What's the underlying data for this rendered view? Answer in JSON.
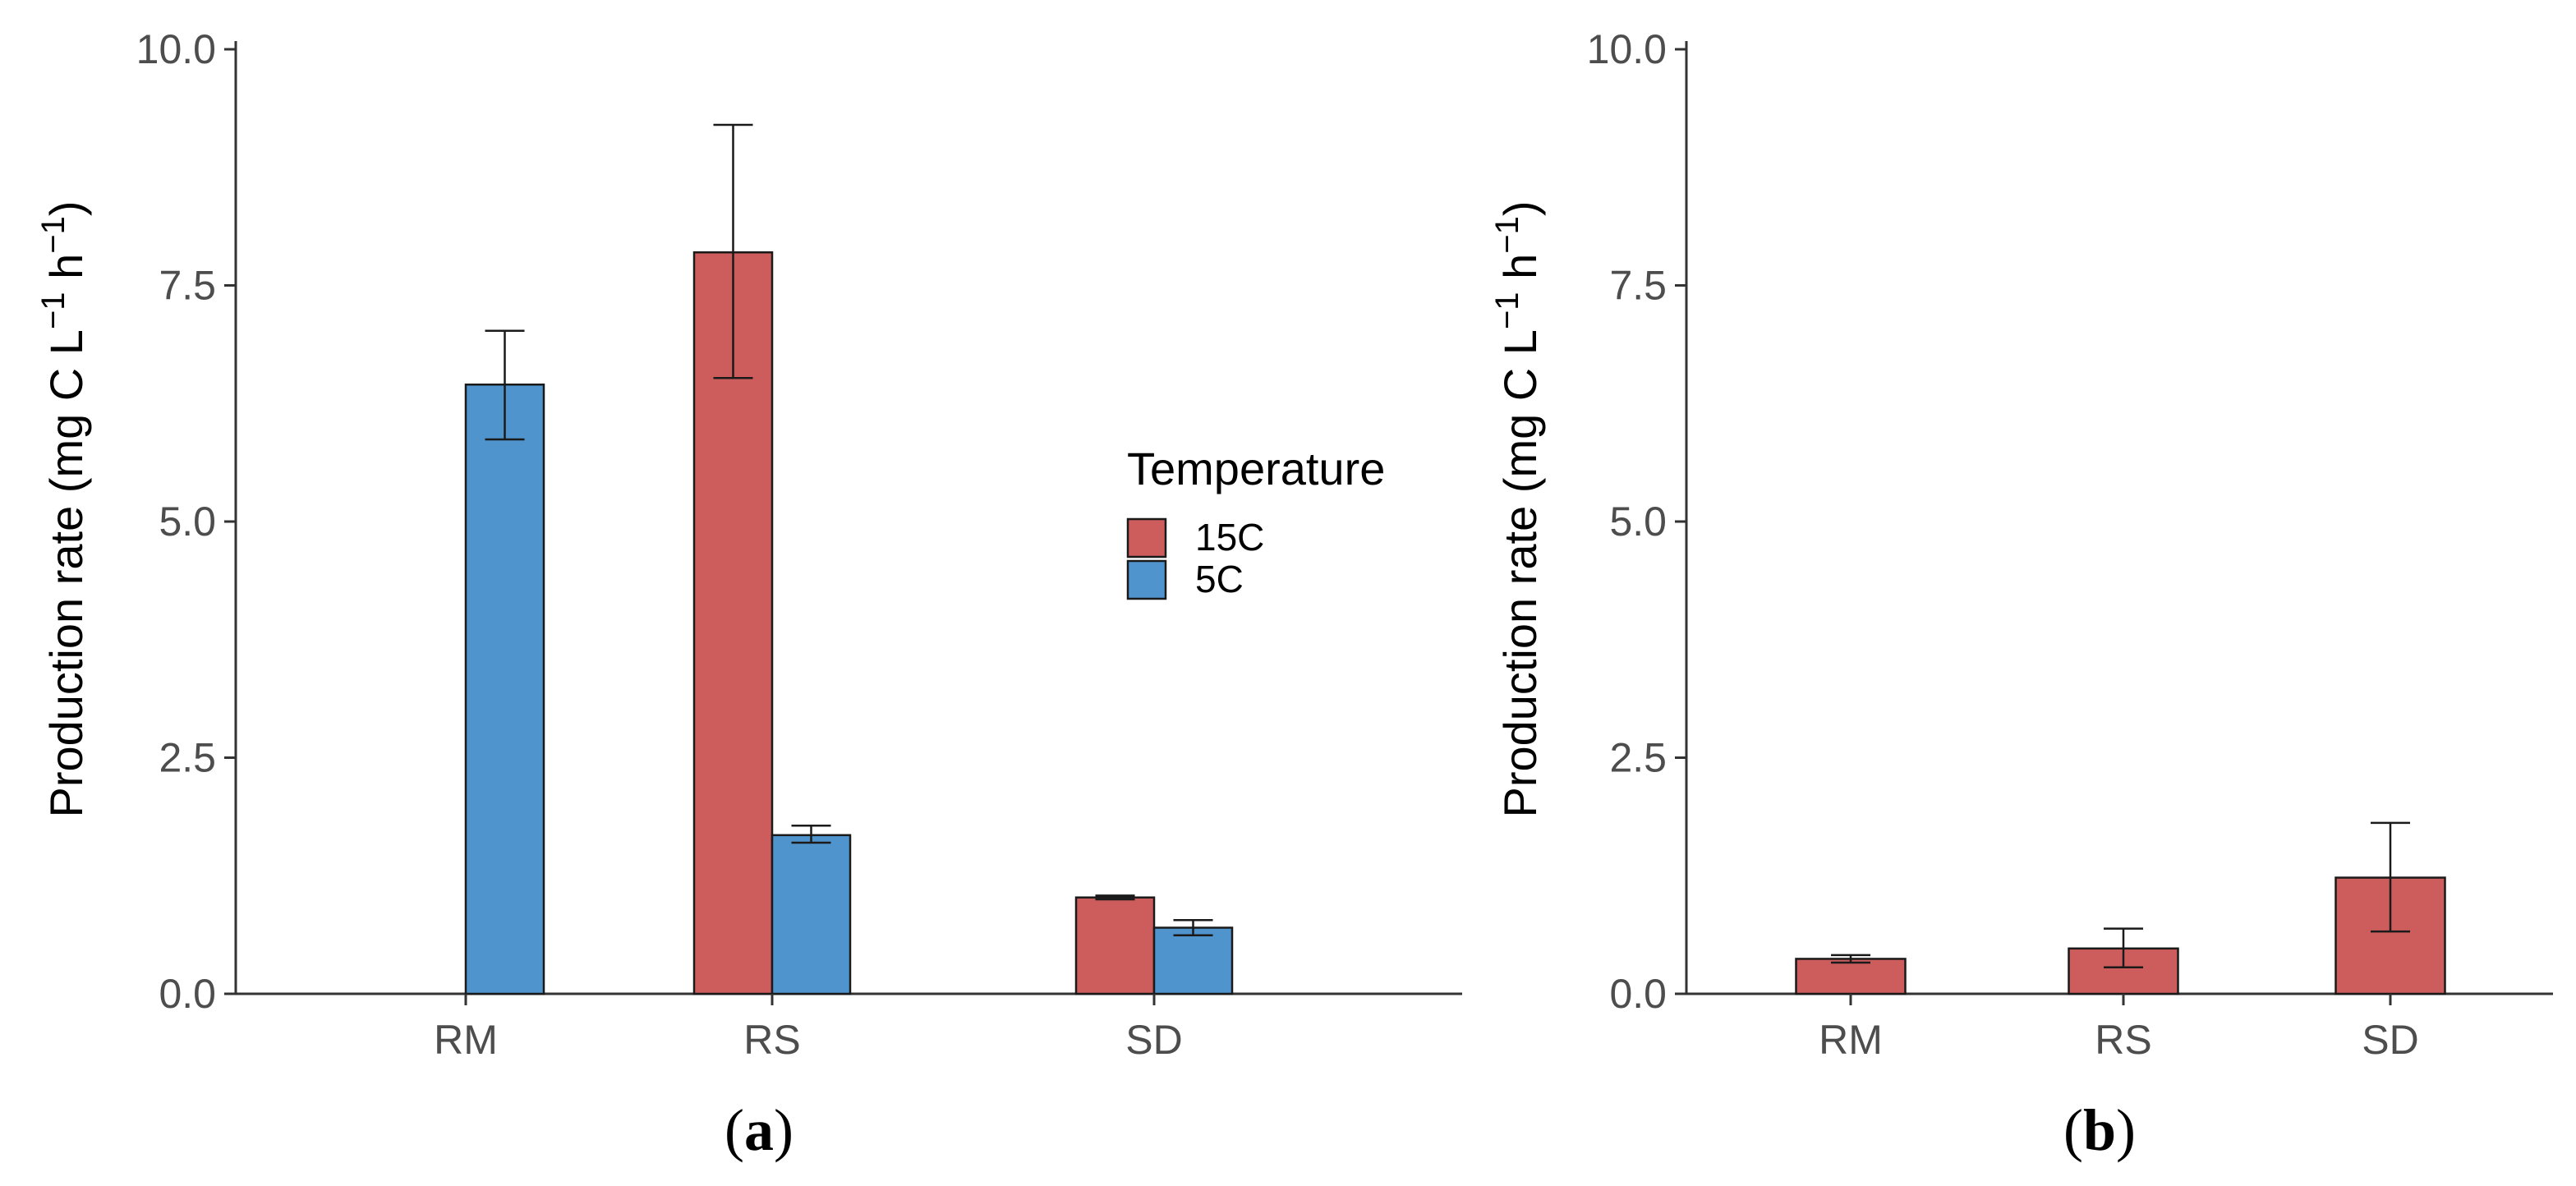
{
  "colors": {
    "15C": "#cd5c5c",
    "5C": "#4f94cd"
  },
  "chart_data": [
    {
      "type": "bar",
      "panel_label": "a",
      "categories": [
        "RM",
        "RS",
        "SD"
      ],
      "ylabel": "Production rate (mg C L⁻¹ h⁻¹)",
      "ylabel_parts": {
        "base": "Production rate (mg C L",
        "sup1": "−1",
        "mid": " h",
        "sup2": "−1",
        "close": ")"
      },
      "ylim": [
        0,
        10
      ],
      "yticks": [
        "0.0",
        "2.5",
        "5.0",
        "7.5",
        "10.0"
      ],
      "legend": {
        "title": "Temperature",
        "entries": [
          "15C",
          "5C"
        ],
        "position": "right"
      },
      "series": [
        {
          "name": "15C",
          "values": [
            null,
            7.85,
            1.02
          ],
          "errors": [
            null,
            [
              6.52,
              9.2
            ],
            [
              1.0,
              1.04
            ]
          ]
        },
        {
          "name": "5C",
          "values": [
            6.45,
            1.68,
            0.7
          ],
          "errors": [
            [
              5.87,
              7.02
            ],
            [
              1.6,
              1.78
            ],
            [
              0.62,
              0.78
            ]
          ]
        }
      ]
    },
    {
      "type": "bar",
      "panel_label": "b",
      "categories": [
        "RM",
        "RS",
        "SD"
      ],
      "ylabel": "Production rate (mg C L⁻¹ h⁻¹)",
      "ylabel_parts": {
        "base": "Production rate (mg C L",
        "sup1": "−1",
        "mid": " h",
        "sup2": "−1",
        "close": ")"
      },
      "ylim": [
        0,
        10
      ],
      "yticks": [
        "0.0",
        "2.5",
        "5.0",
        "7.5",
        "10.0"
      ],
      "series": [
        {
          "name": "15C",
          "values": [
            0.37,
            0.48,
            1.23
          ],
          "errors": [
            [
              0.33,
              0.41
            ],
            [
              0.28,
              0.69
            ],
            [
              0.66,
              1.81
            ]
          ]
        }
      ]
    }
  ]
}
